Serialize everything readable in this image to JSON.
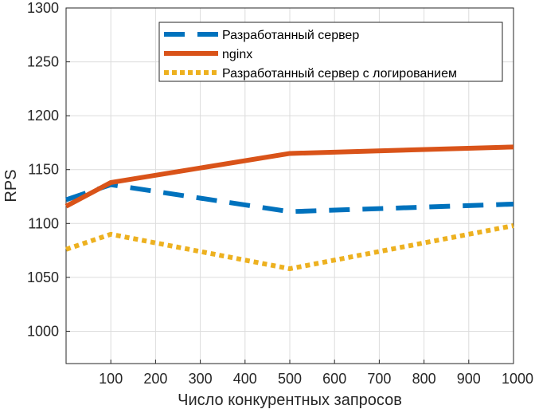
{
  "chart_data": {
    "type": "line",
    "title": "",
    "xlabel": "Число конкурентных запросов",
    "ylabel": "RPS",
    "xlim": [
      0,
      1000
    ],
    "ylim": [
      970,
      1300
    ],
    "xticks": [
      100,
      200,
      300,
      400,
      500,
      600,
      700,
      800,
      900,
      1000
    ],
    "yticks": [
      1000,
      1050,
      1100,
      1150,
      1200,
      1250,
      1300
    ],
    "grid": true,
    "legend_position": "top-right",
    "x": [
      0,
      100,
      500,
      1000
    ],
    "series": [
      {
        "name": "Разработанный сервер",
        "values": [
          1122,
          1136,
          1111,
          1118
        ],
        "color": "#0072BD",
        "line_style": "dashed"
      },
      {
        "name": "nginx",
        "values": [
          1116,
          1138,
          1165,
          1171
        ],
        "color": "#D95319",
        "line_style": "solid"
      },
      {
        "name": "Разработанный сервер с логированием",
        "values": [
          1076,
          1090,
          1058,
          1098
        ],
        "color": "#EDB120",
        "line_style": "dotted"
      }
    ]
  }
}
